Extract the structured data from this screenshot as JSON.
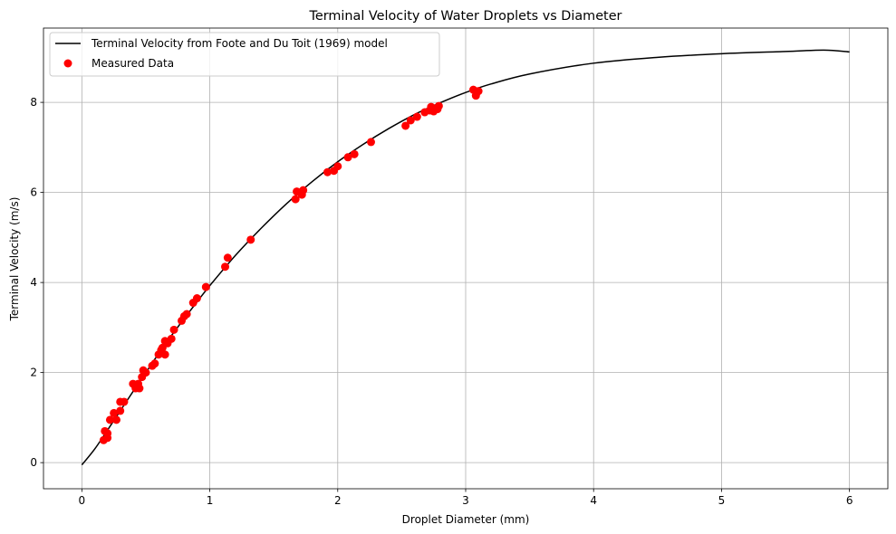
{
  "chart_data": {
    "type": "line",
    "title": "Terminal Velocity of Water Droplets vs Diameter",
    "xlabel": "Droplet Diameter (mm)",
    "ylabel": "Terminal Velocity (m/s)",
    "xlim": [
      -0.3,
      6.3
    ],
    "ylim": [
      -0.58,
      9.65
    ],
    "xticks": [
      0,
      1,
      2,
      3,
      4,
      5,
      6
    ],
    "yticks": [
      0,
      2,
      4,
      6,
      8
    ],
    "grid": true,
    "legend_position": "top-left",
    "colors": {
      "model": "#000000",
      "measured": "#ff0000",
      "grid": "#b0b0b0"
    },
    "series": [
      {
        "name": "Terminal Velocity from Foote and Du Toit (1969) model",
        "type": "line",
        "x": [
          0,
          0.1,
          0.2,
          0.3,
          0.4,
          0.5,
          0.6,
          0.7,
          0.8,
          0.9,
          1.0,
          1.2,
          1.4,
          1.6,
          1.8,
          2.0,
          2.2,
          2.4,
          2.6,
          2.8,
          3.0,
          3.2,
          3.5,
          4.0,
          4.5,
          5.0,
          5.5,
          5.8,
          6.0
        ],
        "y": [
          -0.05,
          0.3,
          0.72,
          1.15,
          1.58,
          2.0,
          2.42,
          2.82,
          3.2,
          3.57,
          3.93,
          4.6,
          5.2,
          5.75,
          6.24,
          6.68,
          7.07,
          7.42,
          7.73,
          7.99,
          8.22,
          8.41,
          8.63,
          8.87,
          9.0,
          9.08,
          9.13,
          9.16,
          9.12
        ]
      },
      {
        "name": "Measured Data",
        "type": "scatter",
        "x": [
          0.17,
          0.18,
          0.2,
          0.2,
          0.22,
          0.25,
          0.27,
          0.3,
          0.3,
          0.33,
          0.4,
          0.42,
          0.44,
          0.45,
          0.47,
          0.48,
          0.5,
          0.55,
          0.57,
          0.6,
          0.62,
          0.63,
          0.65,
          0.65,
          0.67,
          0.7,
          0.72,
          0.78,
          0.8,
          0.82,
          0.87,
          0.9,
          0.97,
          1.12,
          1.14,
          1.32,
          1.67,
          1.68,
          1.72,
          1.73,
          1.92,
          1.97,
          2.0,
          2.08,
          2.13,
          2.26,
          2.53,
          2.57,
          2.62,
          2.68,
          2.72,
          2.73,
          2.75,
          2.78,
          2.79,
          3.06,
          3.08,
          3.1
        ],
        "y": [
          0.5,
          0.7,
          0.55,
          0.65,
          0.95,
          1.1,
          0.95,
          1.15,
          1.35,
          1.35,
          1.75,
          1.65,
          1.75,
          1.65,
          1.9,
          2.05,
          2.0,
          2.15,
          2.2,
          2.4,
          2.5,
          2.55,
          2.4,
          2.7,
          2.65,
          2.75,
          2.95,
          3.15,
          3.25,
          3.3,
          3.55,
          3.65,
          3.9,
          4.35,
          4.55,
          4.95,
          5.85,
          6.02,
          5.95,
          6.05,
          6.45,
          6.48,
          6.58,
          6.78,
          6.85,
          7.12,
          7.48,
          7.6,
          7.68,
          7.78,
          7.82,
          7.9,
          7.8,
          7.85,
          7.92,
          8.28,
          8.15,
          8.25
        ]
      }
    ]
  }
}
